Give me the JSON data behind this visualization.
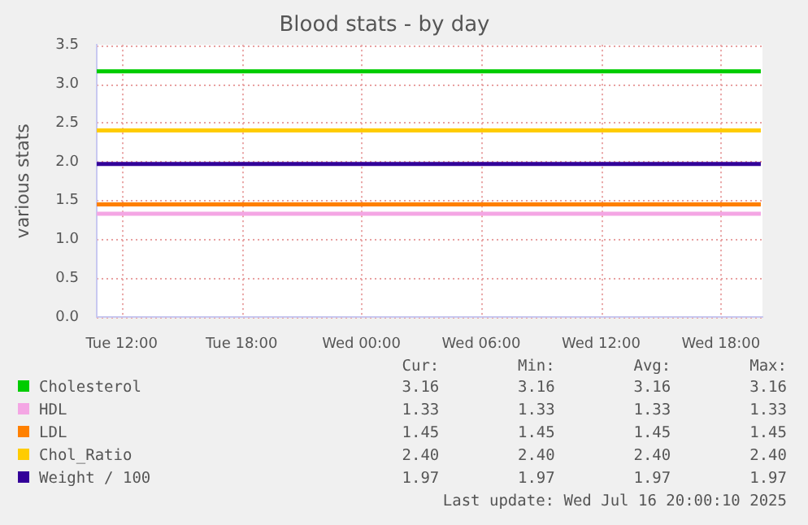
{
  "chart_data": {
    "type": "line",
    "title": "Blood stats - by day",
    "ylabel": "various stats",
    "xlim": [
      "2025-07-15T10:45",
      "2025-07-16T20:05"
    ],
    "xticks": [
      {
        "value": "2025-07-15T12:00",
        "label": "Tue 12:00"
      },
      {
        "value": "2025-07-15T18:00",
        "label": "Tue 18:00"
      },
      {
        "value": "2025-07-16T00:00",
        "label": "Wed 00:00"
      },
      {
        "value": "2025-07-16T06:00",
        "label": "Wed 06:00"
      },
      {
        "value": "2025-07-16T12:00",
        "label": "Wed 12:00"
      },
      {
        "value": "2025-07-16T18:00",
        "label": "Wed 18:00"
      }
    ],
    "ylim": [
      0,
      3.5
    ],
    "yticks": [
      {
        "value": 0,
        "label": "0.0"
      },
      {
        "value": 0.5,
        "label": "0.5"
      },
      {
        "value": 1,
        "label": "1.0"
      },
      {
        "value": 1.5,
        "label": "1.5"
      },
      {
        "value": 2,
        "label": "2.0"
      },
      {
        "value": 2.5,
        "label": "2.5"
      },
      {
        "value": 3,
        "label": "3.0"
      },
      {
        "value": 3.5,
        "label": "3.5"
      }
    ],
    "grid": true,
    "legend": "bottom",
    "marker": "none",
    "line_style": "solid",
    "series": [
      {
        "name": "Cholesterol",
        "color": "#00cc00",
        "x": [
          "2025-07-15T10:45",
          "2025-07-16T20:00"
        ],
        "values": [
          3.16,
          3.16
        ]
      },
      {
        "name": "HDL",
        "color": "#f4a6e4",
        "x": [
          "2025-07-15T10:45",
          "2025-07-16T20:00"
        ],
        "values": [
          1.33,
          1.33
        ]
      },
      {
        "name": "LDL",
        "color": "#ff8000",
        "x": [
          "2025-07-15T10:45",
          "2025-07-16T20:00"
        ],
        "values": [
          1.45,
          1.45
        ]
      },
      {
        "name": "Chol_Ratio",
        "color": "#ffcc00",
        "x": [
          "2025-07-15T10:45",
          "2025-07-16T20:00"
        ],
        "values": [
          2.4,
          2.4
        ]
      },
      {
        "name": "Weight / 100",
        "color": "#330099",
        "x": [
          "2025-07-15T10:45",
          "2025-07-16T20:00"
        ],
        "values": [
          1.97,
          1.97
        ]
      }
    ],
    "annotations": [
      "Cur:",
      "Min:",
      "Avg:",
      "Max:",
      "3.16",
      "3.16",
      "3.16",
      "3.16",
      "1.33",
      "1.33",
      "1.33",
      "1.33",
      "1.45",
      "1.45",
      "1.45",
      "1.45",
      "2.40",
      "2.40",
      "2.40",
      "2.40",
      "1.97",
      "1.97",
      "1.97",
      "1.97",
      "Last update: Wed Jul 16 20:00:10 2025"
    ]
  }
}
